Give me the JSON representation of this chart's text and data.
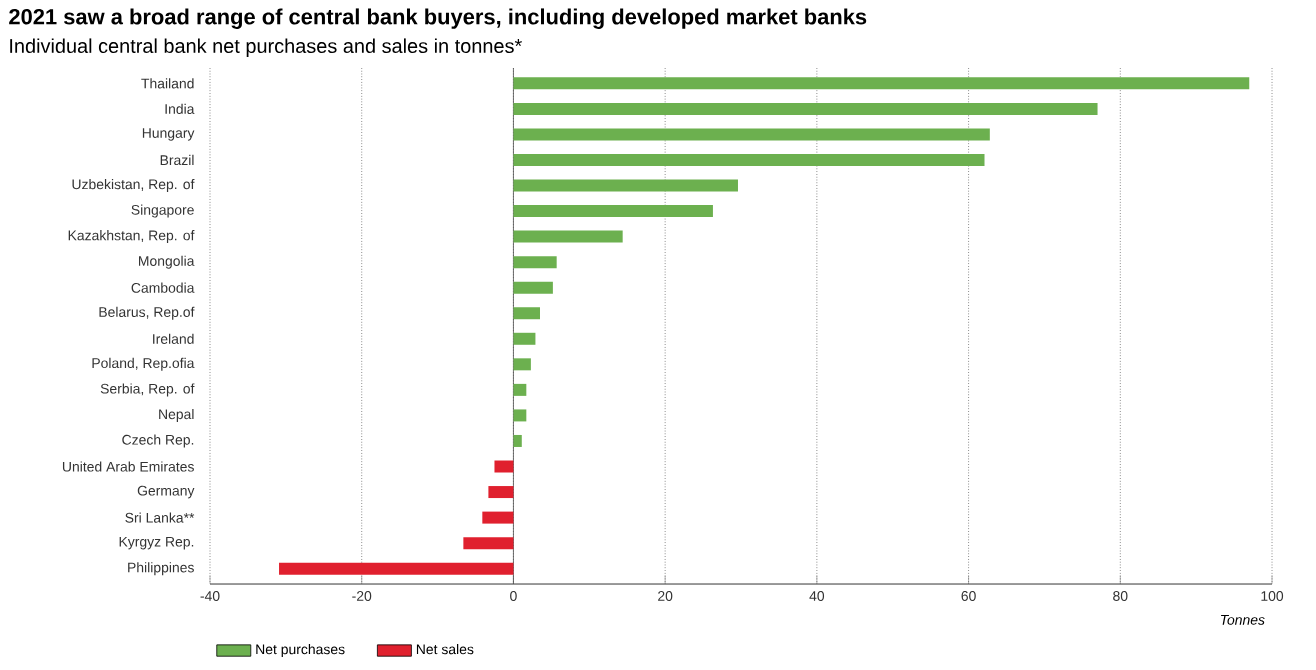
{
  "chart_data": {
    "type": "bar",
    "orientation": "horizontal",
    "title": "2021 saw a broad range of central bank buyers, including developed market banks",
    "subtitle": "Individual central bank net purchases and sales in tonnes*",
    "xlabel": "Tonnes",
    "categories": [
      "Thailand",
      "India",
      "Hungary",
      "Brazil",
      "Uzbekistan, Rep. of",
      "Singapore",
      "Kazakhstan, Rep. of",
      "Mongolia",
      "Cambodia",
      "Belarus, Rep.of",
      "Ireland",
      "Poland, Rep.ofia",
      "Serbia, Rep. of",
      "Nepal",
      "Czech Rep.",
      "United Arab Emirates",
      "Germany",
      "Sri Lanka**",
      "Kyrgyz Rep.",
      "Philippines"
    ],
    "series": [
      {
        "name": "Net purchases",
        "color": "#6cb04f",
        "values": [
          97,
          77,
          62.8,
          62.1,
          29.6,
          26.3,
          14.4,
          5.7,
          5.2,
          3.5,
          2.9,
          2.3,
          1.7,
          1.7,
          1.1,
          null,
          null,
          null,
          null,
          null
        ]
      },
      {
        "name": "Net sales",
        "color": "#e0202e",
        "values": [
          null,
          null,
          null,
          null,
          null,
          null,
          null,
          null,
          null,
          null,
          null,
          null,
          null,
          null,
          null,
          -2.5,
          -3.3,
          -4.1,
          -6.6,
          -30.9
        ]
      }
    ],
    "xlim": [
      -40,
      100
    ],
    "xticks": [
      -40,
      -20,
      0,
      20,
      40,
      60,
      80,
      100
    ],
    "grid": "x",
    "legend": "bottom"
  }
}
